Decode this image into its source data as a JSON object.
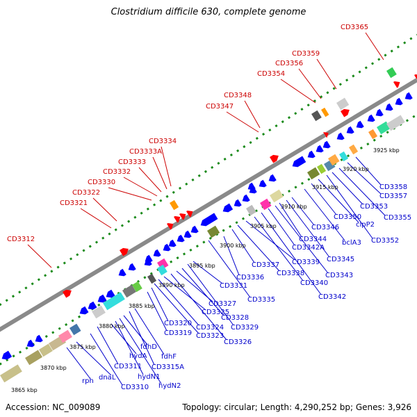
{
  "title": "Clostridium difficile 630, complete genome",
  "footer": {
    "accession": "Accession: NC_009089",
    "summary": "Topology: circular; Length: 4,290,252 bp; Genes: 3,926"
  },
  "colors": {
    "label_top": "#cc0000",
    "label_bottom": "#0000cc",
    "gene_forward": "#ff0000",
    "gene_reverse": "#0000ff",
    "backbone": "#8a8a8a",
    "tick_dots": "#1a8a1a"
  },
  "scale_labels": [
    "3865 kbp",
    "3870 kbp",
    "3875 kbp",
    "3880 kbp",
    "3885 kbp",
    "3890 kbp",
    "3895 kbp",
    "3900 kbp",
    "3905 kbp",
    "3910 kbp",
    "3915 kbp",
    "3920 kbp",
    "3925 kbp"
  ],
  "top_labels": [
    "CD3312",
    "CD3321",
    "CD3322",
    "CD3330",
    "CD3332",
    "CD3333",
    "CD3333A",
    "CD3334",
    "CD3347",
    "CD3348",
    "CD3354",
    "CD3356",
    "CD3359",
    "CD3365"
  ],
  "bottom_labels": [
    "rph",
    "dnaL",
    "CD3310",
    "CD3311",
    "hydA",
    "hydN1",
    "hydN2",
    "fdhD",
    "CD3315A",
    "fdhF",
    "CD3319",
    "CD3320",
    "CD3323",
    "CD3324",
    "CD3325",
    "CD3326",
    "CD3327",
    "CD3328",
    "CD3329",
    "CD3331",
    "CD3335",
    "CD3336",
    "CD3337",
    "CD3338",
    "CD3339",
    "CD3340",
    "CD3342",
    "CD3342A",
    "CD3343",
    "CD3344",
    "CD3345",
    "CD3346",
    "bclA3",
    "CD3350",
    "clpP2",
    "CD3352",
    "CD3353",
    "CD3355",
    "CD3357",
    "CD3358"
  ]
}
